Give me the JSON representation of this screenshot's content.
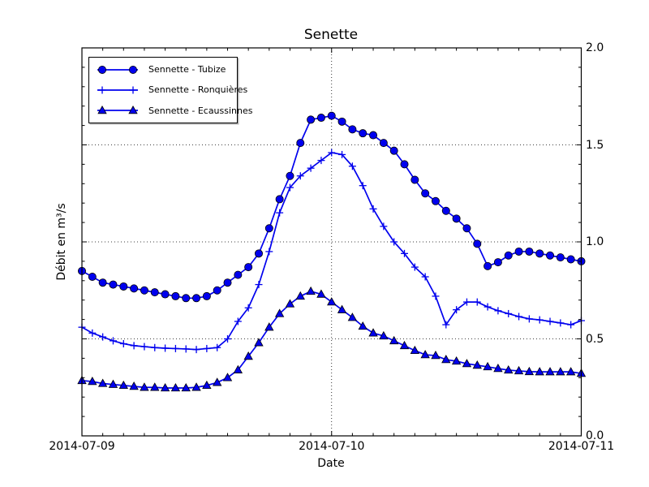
{
  "figure": {
    "background": "#ffffff",
    "frame_color": "#000000",
    "grid_style": "dotted",
    "accent_color": "#0000ee"
  },
  "chart_data": {
    "type": "line",
    "title": "Senette",
    "xlabel": "Date",
    "ylabel": "Débit en m³/s",
    "grid": "on",
    "legend_position": "upper left",
    "x_unit": "hours since 2014-07-09 00:00",
    "x_hours": [
      0,
      1,
      2,
      3,
      4,
      5,
      6,
      7,
      8,
      9,
      10,
      11,
      12,
      13,
      14,
      15,
      16,
      17,
      18,
      19,
      20,
      21,
      22,
      23,
      24,
      25,
      26,
      27,
      28,
      29,
      30,
      31,
      32,
      33,
      34,
      35,
      36,
      37,
      38,
      39,
      40,
      41,
      42,
      43,
      44,
      45,
      46,
      47,
      48
    ],
    "xtick_hours": [
      0,
      24,
      48
    ],
    "xtick_labels": [
      "2014-07-09",
      "2014-07-10",
      "2014-07-11"
    ],
    "x_minor_step_hours": 2,
    "ylim": [
      0.0,
      2.0
    ],
    "yticks": [
      0.0,
      0.5,
      1.0,
      1.5,
      2.0
    ],
    "ytick_labels": [
      "0.0",
      "0.5",
      "1.0",
      "1.5",
      "2.0"
    ],
    "y_minor_step": 0.1,
    "series": [
      {
        "name": "Sennette - Tubize",
        "marker": "circle",
        "color": "#0000ee",
        "values": [
          0.85,
          0.82,
          0.79,
          0.78,
          0.77,
          0.76,
          0.75,
          0.74,
          0.73,
          0.72,
          0.71,
          0.71,
          0.72,
          0.75,
          0.79,
          0.83,
          0.87,
          0.94,
          1.07,
          1.22,
          1.34,
          1.51,
          1.63,
          1.64,
          1.65,
          1.62,
          1.58,
          1.56,
          1.55,
          1.51,
          1.47,
          1.4,
          1.32,
          1.25,
          1.21,
          1.16,
          1.12,
          1.07,
          0.99,
          0.875,
          0.895,
          0.93,
          0.95,
          0.95,
          0.94,
          0.93,
          0.92,
          0.91,
          0.9
        ]
      },
      {
        "name": "Sennette - Ronquières",
        "marker": "plus",
        "color": "#0000ee",
        "values": [
          0.56,
          0.53,
          0.51,
          0.49,
          0.475,
          0.465,
          0.46,
          0.455,
          0.452,
          0.45,
          0.448,
          0.445,
          0.45,
          0.455,
          0.5,
          0.59,
          0.66,
          0.78,
          0.95,
          1.15,
          1.28,
          1.34,
          1.38,
          1.42,
          1.46,
          1.45,
          1.39,
          1.29,
          1.17,
          1.08,
          1.0,
          0.94,
          0.87,
          0.82,
          0.72,
          0.573,
          0.65,
          0.69,
          0.69,
          0.665,
          0.645,
          0.63,
          0.615,
          0.603,
          0.598,
          0.59,
          0.582,
          0.573,
          0.594
        ]
      },
      {
        "name": "Sennette - Ecaussinnes",
        "marker": "triangle",
        "color": "#0000ee",
        "values": [
          0.285,
          0.28,
          0.27,
          0.265,
          0.26,
          0.255,
          0.25,
          0.25,
          0.247,
          0.247,
          0.247,
          0.25,
          0.26,
          0.275,
          0.3,
          0.34,
          0.41,
          0.48,
          0.56,
          0.63,
          0.68,
          0.72,
          0.745,
          0.73,
          0.69,
          0.65,
          0.61,
          0.565,
          0.53,
          0.515,
          0.49,
          0.465,
          0.44,
          0.418,
          0.414,
          0.393,
          0.385,
          0.372,
          0.364,
          0.356,
          0.347,
          0.339,
          0.335,
          0.331,
          0.33,
          0.33,
          0.33,
          0.33,
          0.322
        ]
      }
    ]
  }
}
